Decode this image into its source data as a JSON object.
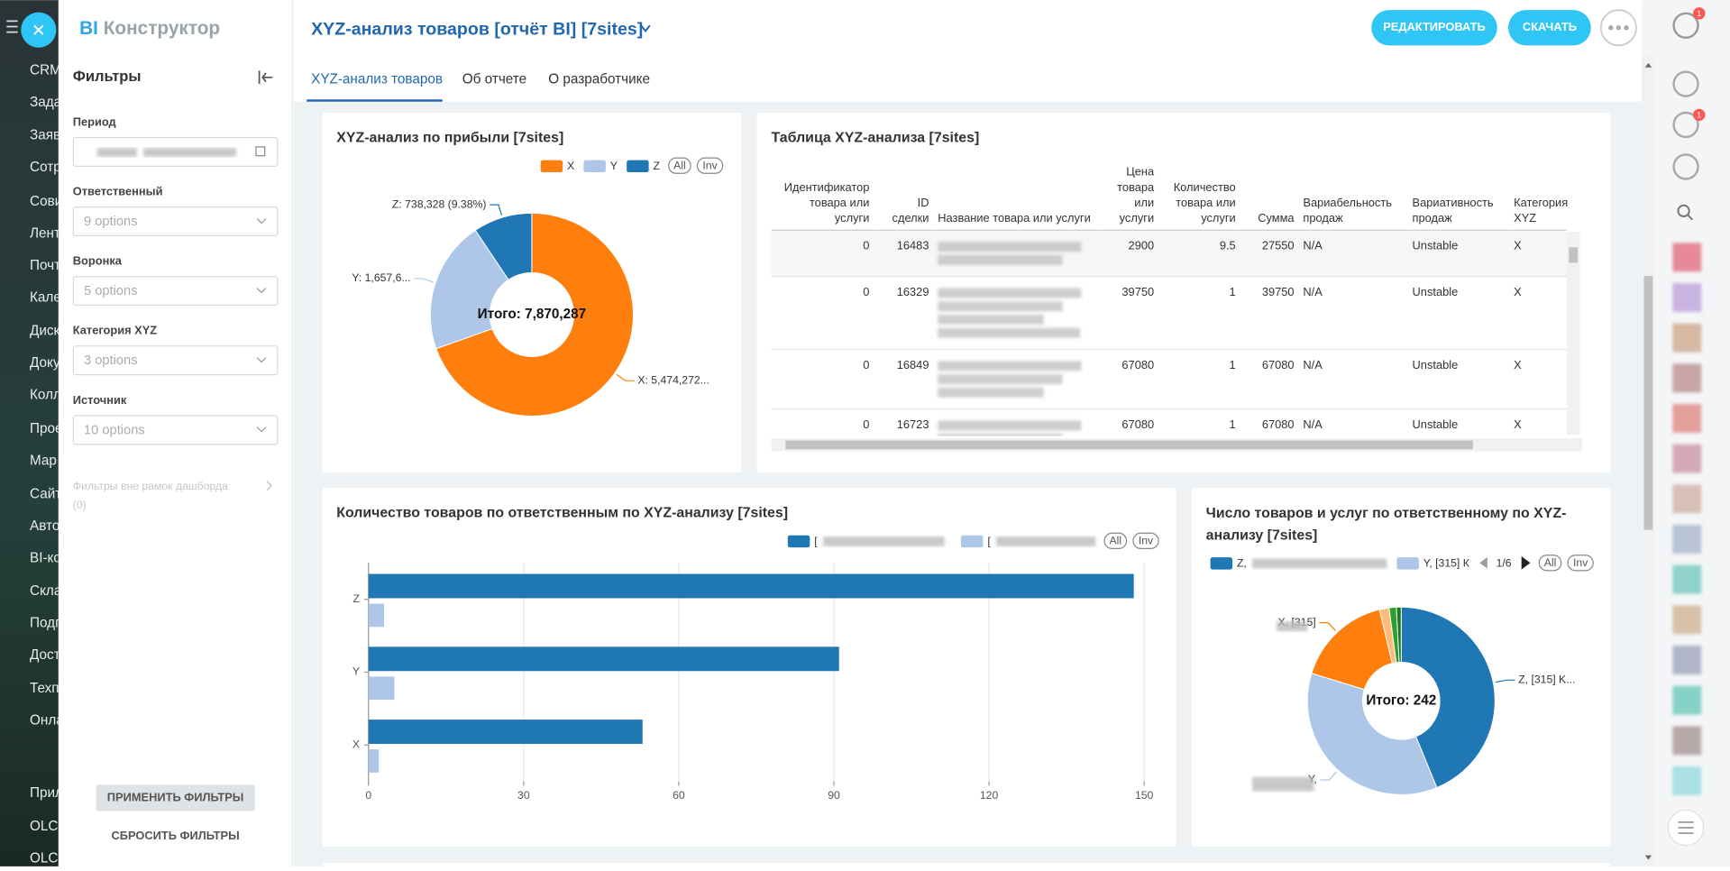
{
  "left_nav": [
    "CRM",
    "Зада",
    "Заяв",
    "Сотр",
    "Сови",
    "Лент",
    "Почт",
    "Кале",
    "Диск",
    "Доку",
    "Колл",
    "Прое",
    "Мар",
    "Сайт",
    "Авто",
    "BI-ко",
    "Скла",
    "Подп",
    "Дост",
    "Техп",
    "Онла",
    "Прил",
    "OLCI",
    "OLCI"
  ],
  "logo": {
    "bi": "BI",
    "text": "Конструктор"
  },
  "header": {
    "title": "XYZ-анализ товаров [отчёт BI] [7sites]",
    "buttons": [
      "РЕДАКТИРОВАТЬ",
      "СКАЧАТЬ"
    ]
  },
  "tabs": [
    "XYZ-анализ товаров",
    "Об отчете",
    "О разработчике"
  ],
  "filters": {
    "title": "Фильтры",
    "fields": [
      {
        "label": "Период"
      },
      {
        "label": "Ответственный",
        "placeholder": "9 options"
      },
      {
        "label": "Воронка",
        "placeholder": "5 options"
      },
      {
        "label": "Категория XYZ",
        "placeholder": "3 options"
      },
      {
        "label": "Источник",
        "placeholder": "10 options"
      }
    ],
    "outside": "Фильтры вне рамок дашборда",
    "outside_count": "(0)",
    "apply": "ПРИМЕНИТЬ ФИЛЬТРЫ",
    "reset": "СБРОСИТЬ ФИЛЬТРЫ"
  },
  "sidebar_badges": [
    "1",
    "1"
  ],
  "table": {
    "title": "Таблица XYZ-анализа [7sites]",
    "columns": [
      "Идентификатор товара или услуги",
      "ID сделки",
      "Название товара или услуги",
      "Цена товара или услуги",
      "Количество товара или услуги",
      "Сумма",
      "Вариабельность продаж",
      "Вариативность продаж",
      "Категория XYZ"
    ],
    "rows": [
      [
        0,
        16483,
        null,
        2900,
        9.5,
        27550,
        "N/A",
        "Unstable",
        "X"
      ],
      [
        0,
        16329,
        null,
        39750,
        1,
        39750,
        "N/A",
        "Unstable",
        "X"
      ],
      [
        0,
        16849,
        null,
        67080,
        1,
        67080,
        "N/A",
        "Unstable",
        "X"
      ],
      [
        0,
        16723,
        null,
        67080,
        1,
        67080,
        "N/A",
        "Unstable",
        "X"
      ]
    ]
  },
  "chart_data": [
    {
      "type": "pie",
      "donut": true,
      "title": "XYZ-анализ по прибыли [7sites]",
      "categories": [
        "X",
        "Y",
        "Z"
      ],
      "values": [
        5474272,
        1657687,
        738328
      ],
      "value_labels": [
        "X: 5,474,272...",
        "Y: 1,657,6...",
        "Z: 738,328 (9.38%)"
      ],
      "colors": [
        "#ff7f0e",
        "#aec7e8",
        "#1f77b4"
      ],
      "total_label": "Итого: 7,870,287",
      "legend_buttons": [
        "All",
        "Inv"
      ]
    },
    {
      "type": "bar",
      "horizontal": true,
      "title": "Количество товаров по ответственным по XYZ-анализу [7sites]",
      "categories": [
        "Z",
        "Y",
        "X"
      ],
      "series": [
        {
          "name": "[",
          "color": "#1f77b4",
          "values": [
            148,
            91,
            53
          ]
        },
        {
          "name": "[",
          "color": "#aec7e8",
          "values": [
            3,
            5,
            2
          ]
        }
      ],
      "xlim": [
        0,
        150
      ],
      "xticks": [
        0,
        30,
        60,
        90,
        120,
        150
      ],
      "grid": true,
      "legend_buttons": [
        "All",
        "Inv"
      ]
    },
    {
      "type": "pie",
      "donut": true,
      "title": "Число товаров и услуг по ответственному по XYZ-анализу [7sites]",
      "categories": [
        "Z, [315] K...",
        "Y,",
        "X, [315]",
        null,
        null,
        null
      ],
      "values": [
        106,
        87,
        40,
        4,
        3,
        2
      ],
      "colors": [
        "#1f77b4",
        "#aec7e8",
        "#ff7f0e",
        "#ffbb78",
        "#2ca02c",
        "#1b7a1b"
      ],
      "legend": [
        "Z,",
        "Y, [315] К"
      ],
      "legend_page": "1/6",
      "total_label": "Итого: 242",
      "legend_buttons": [
        "All",
        "Inv"
      ]
    }
  ]
}
